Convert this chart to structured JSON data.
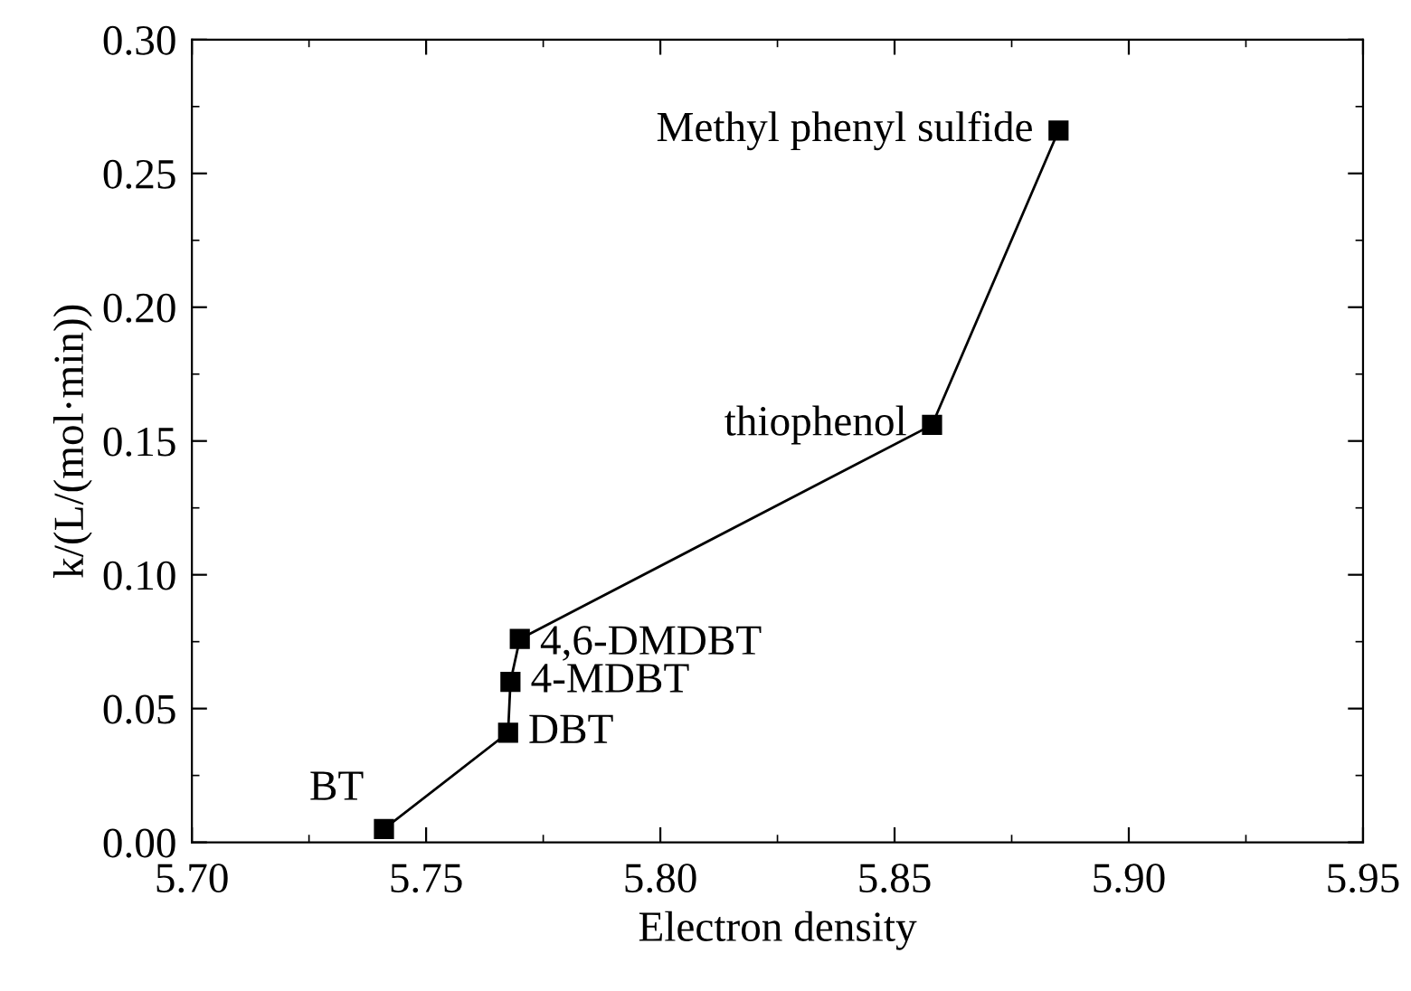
{
  "chart_data": {
    "type": "line",
    "xlabel": "Electron density",
    "ylabel": "k/(L/(mol·min))",
    "x": [
      5.741,
      5.7675,
      5.768,
      5.77,
      5.858,
      5.885
    ],
    "series": [
      {
        "color": "#000000",
        "values": [
          0.005,
          0.041,
          0.06,
          0.076,
          0.156,
          0.266
        ]
      }
    ],
    "marker": "square",
    "line_style": "solid",
    "xlim": [
      5.7,
      5.95
    ],
    "xticks": [
      {
        "value": 5.7,
        "label": "5.70"
      },
      {
        "value": 5.75,
        "label": "5.75"
      },
      {
        "value": 5.8,
        "label": "5.80"
      },
      {
        "value": 5.85,
        "label": "5.85"
      },
      {
        "value": 5.9,
        "label": "5.90"
      },
      {
        "value": 5.95,
        "label": "5.95"
      }
    ],
    "ylim": [
      0,
      0.3
    ],
    "yticks": [
      {
        "value": 0,
        "label": "0.00"
      },
      {
        "value": 0.05,
        "label": "0.05"
      },
      {
        "value": 0.1,
        "label": "0.10"
      },
      {
        "value": 0.15,
        "label": "0.15"
      },
      {
        "value": 0.2,
        "label": "0.20"
      },
      {
        "value": 0.25,
        "label": "0.25"
      },
      {
        "value": 0.3,
        "label": "0.30"
      }
    ],
    "grid": false,
    "annotations": [
      {
        "text": "BT",
        "x": 5.741,
        "y": 0.005
      },
      {
        "text": "DBT",
        "x": 5.7675,
        "y": 0.041
      },
      {
        "text": "4-MDBT",
        "x": 5.768,
        "y": 0.06
      },
      {
        "text": "4,6-DMDBT",
        "x": 5.77,
        "y": 0.076
      },
      {
        "text": "thiophenol",
        "x": 5.858,
        "y": 0.156
      },
      {
        "text": "Methyl phenyl sulfide",
        "x": 5.885,
        "y": 0.266
      }
    ]
  }
}
